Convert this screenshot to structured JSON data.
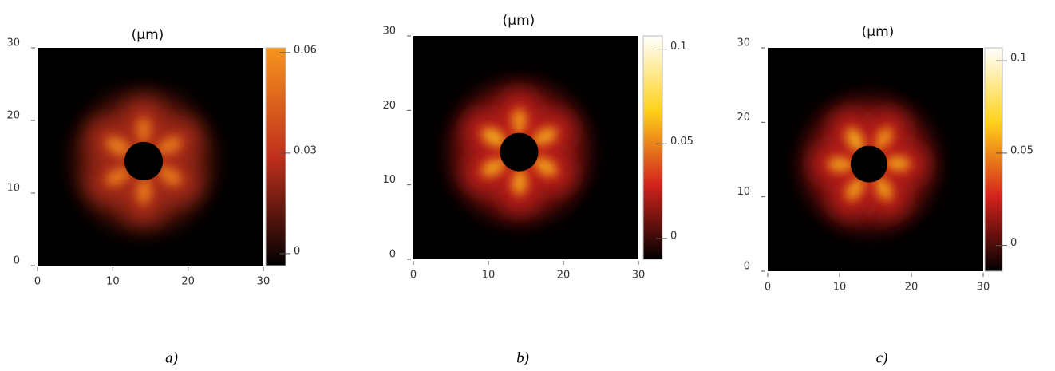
{
  "chart_data": [
    {
      "type": "heatmap",
      "title": "(μm)",
      "caption": "a)",
      "xlim": [
        0,
        30
      ],
      "xticks": [
        0,
        10,
        20,
        30
      ],
      "ylim": [
        0,
        30
      ],
      "yticks": [
        0,
        10,
        20,
        30
      ],
      "zlim": [
        -0.0036,
        0.0614
      ],
      "zticks": [
        0,
        0.03,
        0.06
      ],
      "colormap": [
        "#000000",
        "#c0301c",
        "#f7941d"
      ]
    },
    {
      "type": "heatmap",
      "title": "(μm)",
      "caption": "b)",
      "xlim": [
        0,
        30
      ],
      "xticks": [
        0,
        10,
        20,
        30
      ],
      "ylim": [
        0,
        30
      ],
      "yticks": [
        0,
        10,
        20,
        30
      ],
      "zlim": [
        -0.011,
        0.107
      ],
      "zticks": [
        0,
        0.05,
        0.1
      ],
      "colormap": [
        "#000000",
        "#d2231c",
        "#ffd21a",
        "#ffffff"
      ]
    },
    {
      "type": "heatmap",
      "title": "(μm)",
      "caption": "c)",
      "xlim": [
        0,
        30
      ],
      "xticks": [
        0,
        10,
        20,
        30
      ],
      "ylim": [
        0,
        30
      ],
      "yticks": [
        0,
        10,
        20,
        30
      ],
      "zlim": [
        -0.014,
        0.107
      ],
      "zticks": [
        0,
        0.05,
        0.1
      ],
      "colormap": [
        "#000000",
        "#d2231c",
        "#ffd21a",
        "#ffffff"
      ]
    }
  ]
}
